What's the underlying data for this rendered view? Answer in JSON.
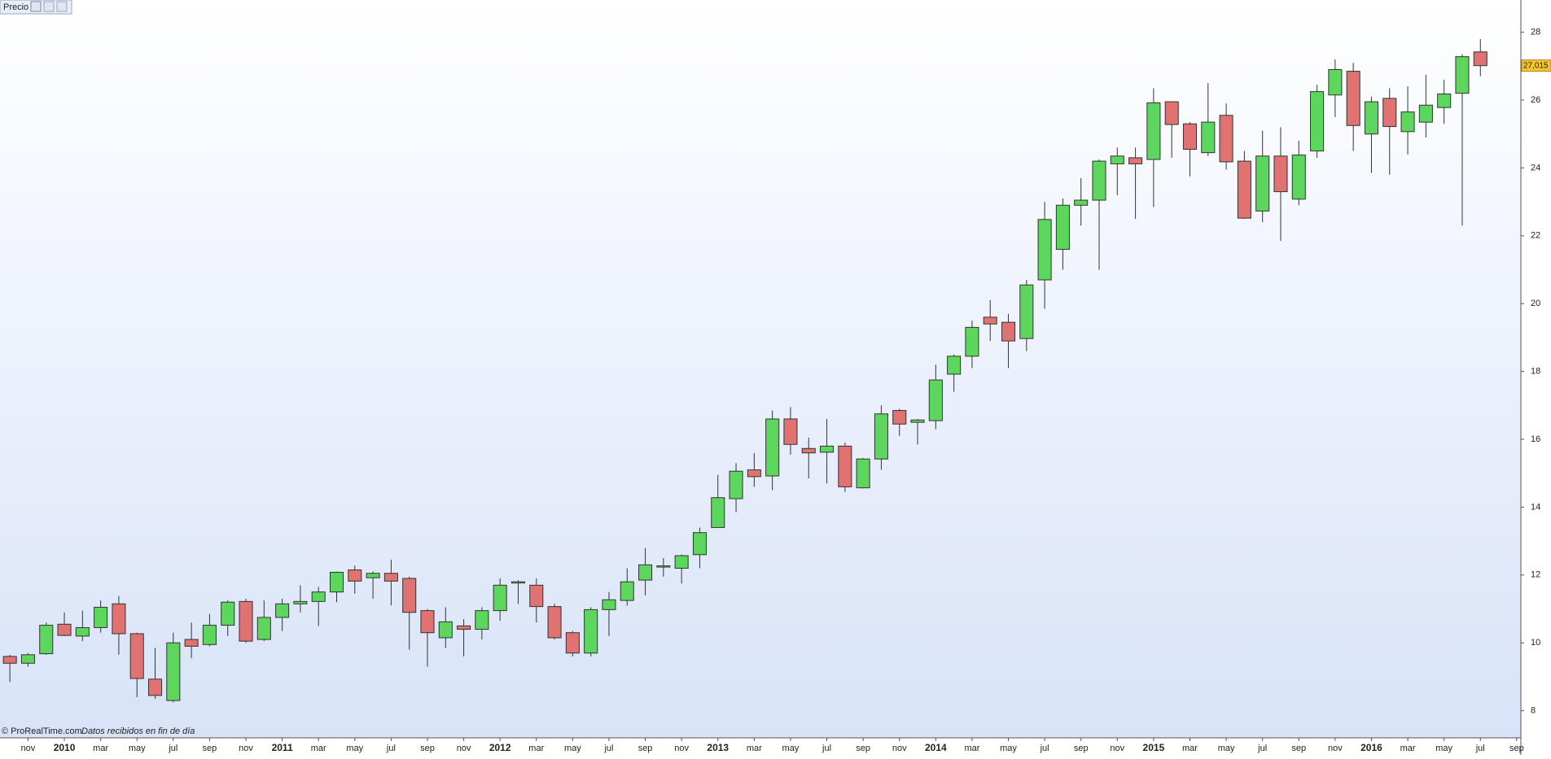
{
  "chart_data": {
    "type": "candlestick",
    "title": "Precio",
    "source": "© ProRealTime.com",
    "note": "Datos recibidos en fin de día",
    "categories": [
      null,
      "nov",
      null,
      "2010",
      null,
      "mar",
      null,
      "may",
      null,
      "jul",
      null,
      "sep",
      null,
      "nov",
      null,
      "2011",
      null,
      "mar",
      null,
      "may",
      null,
      "jul",
      null,
      "sep",
      null,
      "nov",
      null,
      "2012",
      null,
      "mar",
      null,
      "may",
      null,
      "jul",
      null,
      "sep",
      null,
      "nov",
      null,
      "2013",
      null,
      "mar",
      null,
      "may",
      null,
      "jul",
      null,
      "sep",
      null,
      "nov",
      null,
      "2014",
      null,
      "mar",
      null,
      "may",
      null,
      "jul",
      null,
      "sep",
      null,
      "nov",
      null,
      "2015",
      null,
      "mar",
      null,
      "may",
      null,
      "jul",
      null,
      "sep",
      null,
      "nov",
      null,
      "2016",
      null,
      "mar",
      null,
      "may",
      null,
      "jul",
      null,
      "sep"
    ],
    "open": [
      9.6,
      9.4,
      9.68,
      10.55,
      10.2,
      10.45,
      11.15,
      10.27,
      8.93,
      8.3,
      10.1,
      9.95,
      10.52,
      11.22,
      10.1,
      10.75,
      11.15,
      11.22,
      11.5,
      12.15,
      11.92,
      12.05,
      11.9,
      10.95,
      10.15,
      10.5,
      10.4,
      10.95,
      11.78,
      11.7,
      11.07,
      10.3,
      9.7,
      10.98,
      11.25,
      11.85,
      12.25,
      12.2,
      12.6,
      13.4,
      14.25,
      15.1,
      14.92,
      16.6,
      15.73,
      15.62,
      15.8,
      14.57,
      15.42,
      16.85,
      16.5,
      16.55,
      17.92,
      18.45,
      19.6,
      19.45,
      18.97,
      20.7,
      21.6,
      22.9,
      23.05,
      24.12,
      24.3,
      24.25,
      25.95,
      25.3,
      24.45,
      25.55,
      24.2,
      22.73,
      24.35,
      23.08,
      24.5,
      26.15,
      26.85,
      25.0,
      26.05,
      25.07,
      25.35,
      25.78,
      26.2,
      27.42,
      null,
      null
    ],
    "high": [
      9.65,
      9.7,
      10.6,
      10.9,
      10.95,
      11.25,
      11.38,
      10.3,
      9.85,
      10.3,
      10.6,
      10.85,
      11.25,
      11.3,
      11.25,
      11.3,
      11.7,
      11.65,
      12.1,
      12.28,
      12.1,
      12.45,
      11.95,
      11.0,
      11.05,
      10.7,
      11.05,
      11.9,
      11.85,
      11.9,
      11.15,
      10.35,
      11.05,
      11.5,
      12.2,
      12.8,
      12.5,
      12.6,
      13.4,
      14.95,
      15.3,
      15.6,
      16.85,
      16.95,
      16.05,
      16.6,
      15.9,
      15.45,
      17.0,
      16.9,
      16.6,
      18.2,
      18.5,
      19.5,
      20.1,
      19.7,
      20.7,
      23.0,
      23.1,
      23.7,
      24.25,
      24.6,
      24.6,
      26.35,
      25.95,
      25.35,
      26.5,
      25.9,
      24.5,
      25.1,
      25.2,
      24.8,
      26.45,
      27.2,
      27.1,
      26.1,
      26.35,
      26.4,
      26.75,
      26.6,
      27.35,
      27.8,
      null,
      null
    ],
    "low": [
      8.85,
      9.3,
      9.65,
      10.2,
      10.05,
      10.3,
      9.65,
      8.4,
      8.35,
      8.25,
      9.55,
      9.9,
      10.2,
      10.0,
      10.05,
      10.35,
      10.9,
      10.5,
      11.2,
      11.45,
      11.3,
      11.1,
      9.8,
      9.3,
      9.85,
      9.6,
      10.1,
      10.65,
      11.15,
      10.6,
      10.1,
      9.6,
      9.6,
      10.2,
      11.1,
      11.4,
      11.95,
      11.75,
      12.2,
      13.4,
      13.85,
      14.6,
      14.5,
      15.55,
      14.85,
      14.7,
      14.45,
      14.55,
      15.1,
      16.1,
      15.85,
      16.3,
      17.4,
      18.1,
      18.9,
      18.1,
      18.6,
      19.85,
      21.0,
      22.3,
      21.0,
      23.2,
      22.5,
      22.85,
      24.3,
      23.75,
      24.35,
      23.95,
      22.5,
      22.4,
      21.85,
      22.9,
      24.3,
      25.5,
      24.5,
      23.85,
      23.8,
      24.4,
      24.9,
      25.3,
      22.3,
      26.7,
      null,
      null
    ],
    "close": [
      9.4,
      9.65,
      10.52,
      10.22,
      10.45,
      11.05,
      10.27,
      8.95,
      8.45,
      10.0,
      9.9,
      10.52,
      11.2,
      10.05,
      10.75,
      11.15,
      11.22,
      11.5,
      12.08,
      11.82,
      12.05,
      11.82,
      10.9,
      10.3,
      10.62,
      10.4,
      10.95,
      11.7,
      11.8,
      11.07,
      10.15,
      9.7,
      10.98,
      11.27,
      11.8,
      12.3,
      12.27,
      12.57,
      13.25,
      14.28,
      15.06,
      14.9,
      16.6,
      15.85,
      15.6,
      15.8,
      14.6,
      15.42,
      16.75,
      16.45,
      16.57,
      17.75,
      18.45,
      19.3,
      19.4,
      18.9,
      20.55,
      22.48,
      22.9,
      23.05,
      24.2,
      24.35,
      24.12,
      25.92,
      25.28,
      24.55,
      25.35,
      24.18,
      22.52,
      24.35,
      23.3,
      24.38,
      26.25,
      26.9,
      25.25,
      25.95,
      25.22,
      25.65,
      25.85,
      26.18,
      27.28,
      27.015,
      null,
      null
    ],
    "up_color": "#5cd65c",
    "down_color": "#e07272",
    "last_price": {
      "value": 27.015,
      "label": "27,015"
    },
    "ylim": [
      7.2,
      28.95
    ],
    "yticks": [
      8,
      10,
      12,
      14,
      16,
      18,
      20,
      22,
      24,
      26,
      28
    ],
    "grid": false
  }
}
